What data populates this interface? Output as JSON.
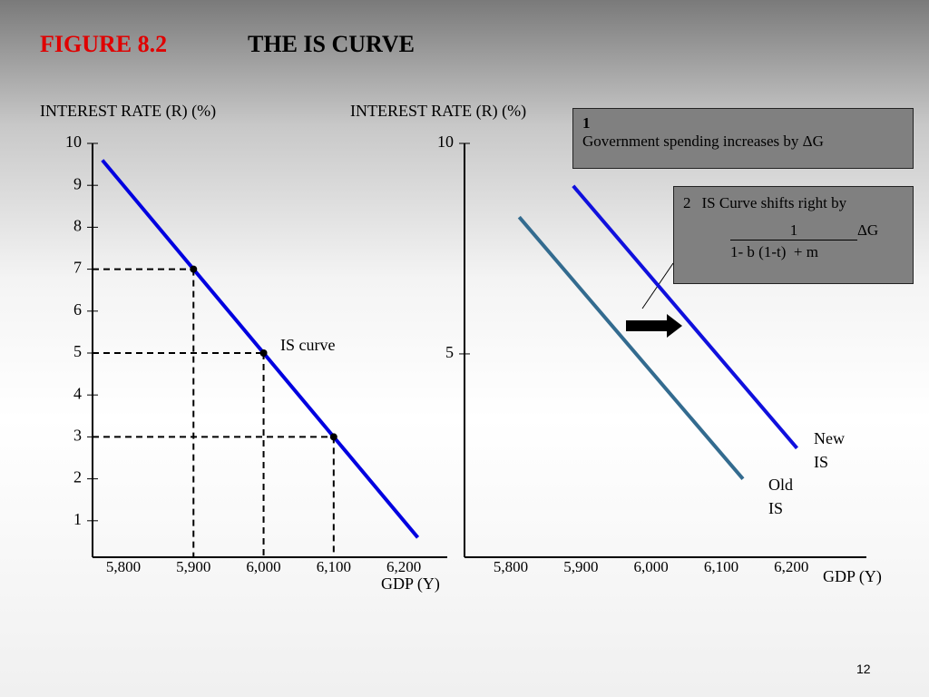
{
  "slide": {
    "figure": "FIGURE 8.2",
    "title": "THE IS CURVE",
    "page": "12"
  },
  "chart_data": [
    {
      "type": "line",
      "y_label": "INTEREST RATE (R) (%)",
      "x_label": "GDP (Y)",
      "xlim": [
        5756,
        6262
      ],
      "ylim": [
        0.13,
        10
      ],
      "xticks": [
        {
          "value": 5800,
          "label": "5,800"
        },
        {
          "value": 5900,
          "label": "5,900"
        },
        {
          "value": 6000,
          "label": "6,000"
        },
        {
          "value": 6100,
          "label": "6,100"
        },
        {
          "value": 6200,
          "label": "6,200"
        }
      ],
      "yticks": [
        1,
        2,
        3,
        4,
        5,
        6,
        7,
        8,
        9,
        10
      ],
      "series": [
        {
          "color": "#0000e0",
          "x": [
            5770,
            6220
          ],
          "values": [
            9.6,
            0.6
          ]
        }
      ],
      "points": {
        "color": "#000000",
        "x": [
          5900,
          6000,
          6100
        ],
        "values": [
          7,
          5,
          3
        ]
      },
      "annotations": [
        "IS curve"
      ]
    },
    {
      "type": "line",
      "y_label": "INTEREST RATE (R) (%)",
      "x_label": "GDP (Y)",
      "xlim": [
        5734,
        6307
      ],
      "ylim": [
        0.17,
        10
      ],
      "xticks": [
        {
          "value": 5800,
          "label": "5,800"
        },
        {
          "value": 5900,
          "label": "5,900"
        },
        {
          "value": 6000,
          "label": "6,000"
        },
        {
          "value": 6100,
          "label": "6,100"
        },
        {
          "value": 6200,
          "label": "6,200"
        }
      ],
      "yticks": [
        5,
        10
      ],
      "series": [
        {
          "name": "New IS",
          "color": "#1010dd",
          "x": [
            5889,
            6208
          ],
          "values": [
            8.99,
            2.76
          ]
        },
        {
          "name": "Old IS",
          "color": "#336b8f",
          "x": [
            5812,
            6131
          ],
          "values": [
            8.25,
            2.03
          ]
        }
      ]
    }
  ],
  "callouts": [
    {
      "number": "1",
      "text": "Government spending increases by ΔG"
    },
    {
      "number": "2",
      "text": "IS Curve shifts right by",
      "numerator": "1",
      "suffix": "ΔG",
      "denominator": "1- b (1-t)  + m"
    }
  ]
}
